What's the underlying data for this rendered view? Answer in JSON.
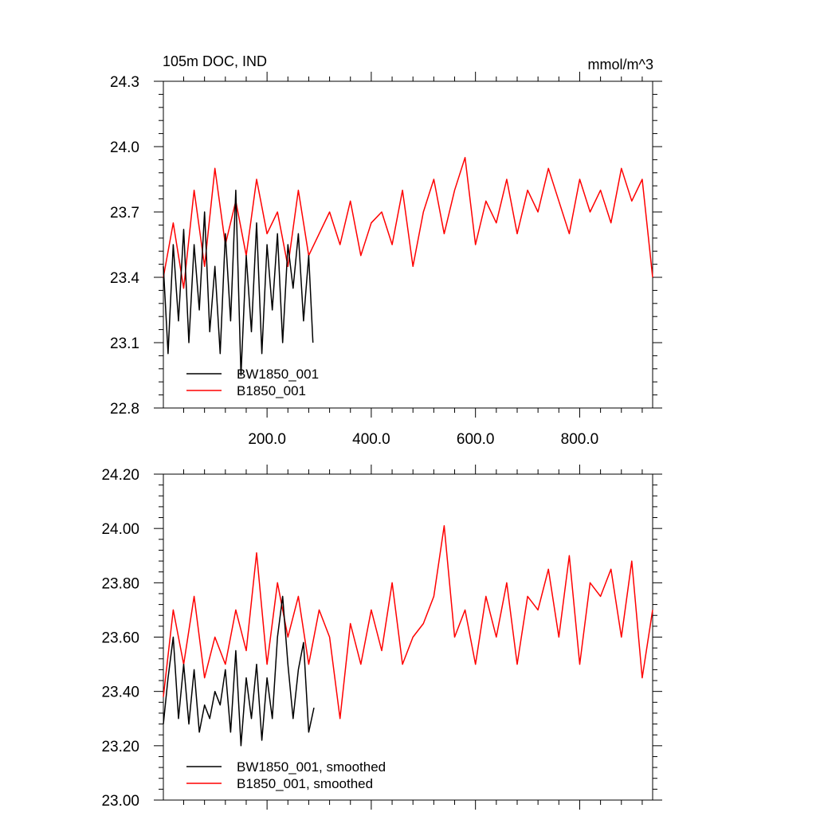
{
  "chart_data": [
    {
      "type": "line",
      "title": "105m DOC, IND",
      "units": "mmol/m^3",
      "xlabel": "",
      "ylabel": "",
      "xlim": [
        1,
        940
      ],
      "ylim": [
        22.8,
        24.3
      ],
      "xticks": [
        200,
        400,
        600,
        800
      ],
      "xtick_labels": [
        "200.0",
        "400.0",
        "600.0",
        "800.0"
      ],
      "yticks": [
        22.8,
        23.1,
        23.4,
        23.7,
        24.0,
        24.3
      ],
      "ytick_labels": [
        "22.8",
        "23.1",
        "23.4",
        "23.7",
        "24.0",
        "24.3"
      ],
      "legend": "bottom-left",
      "series": [
        {
          "name": "BW1850_001",
          "color": "#000000",
          "x": [
            1,
            10,
            20,
            30,
            40,
            50,
            60,
            70,
            80,
            90,
            100,
            110,
            120,
            130,
            140,
            150,
            160,
            170,
            180,
            190,
            200,
            210,
            220,
            230,
            240,
            250,
            260,
            270,
            280,
            288
          ],
          "values": [
            23.45,
            23.05,
            23.55,
            23.2,
            23.62,
            23.1,
            23.55,
            23.25,
            23.7,
            23.15,
            23.45,
            23.05,
            23.6,
            23.2,
            23.8,
            22.95,
            23.5,
            23.15,
            23.65,
            23.05,
            23.55,
            23.25,
            23.6,
            23.1,
            23.55,
            23.35,
            23.6,
            23.2,
            23.5,
            23.1
          ]
        },
        {
          "name": "B1850_001",
          "color": "#ff0000",
          "x": [
            1,
            20,
            40,
            60,
            80,
            100,
            120,
            140,
            160,
            180,
            200,
            220,
            240,
            260,
            280,
            300,
            320,
            340,
            360,
            380,
            400,
            420,
            440,
            460,
            480,
            500,
            520,
            540,
            560,
            580,
            600,
            620,
            640,
            660,
            680,
            700,
            720,
            740,
            760,
            780,
            800,
            820,
            840,
            860,
            880,
            900,
            920,
            940
          ],
          "values": [
            23.4,
            23.65,
            23.35,
            23.8,
            23.45,
            23.9,
            23.55,
            23.75,
            23.5,
            23.85,
            23.6,
            23.7,
            23.45,
            23.8,
            23.5,
            23.6,
            23.7,
            23.55,
            23.75,
            23.5,
            23.65,
            23.7,
            23.55,
            23.8,
            23.45,
            23.7,
            23.85,
            23.6,
            23.8,
            23.95,
            23.55,
            23.75,
            23.65,
            23.85,
            23.6,
            23.8,
            23.7,
            23.9,
            23.75,
            23.6,
            23.85,
            23.7,
            23.8,
            23.65,
            23.9,
            23.75,
            23.85,
            23.4
          ]
        }
      ]
    },
    {
      "type": "line",
      "title": "",
      "xlabel": "",
      "ylabel": "",
      "xlim": [
        1,
        940
      ],
      "ylim": [
        23.0,
        24.2
      ],
      "xticks": [
        200,
        400,
        600,
        800
      ],
      "yticks": [
        23.0,
        23.2,
        23.4,
        23.6,
        23.8,
        24.0,
        24.2
      ],
      "ytick_labels": [
        "23.00",
        "23.20",
        "23.40",
        "23.60",
        "23.80",
        "24.00",
        "24.20"
      ],
      "legend": "bottom-left",
      "series": [
        {
          "name": "BW1850_001, smoothed",
          "color": "#000000",
          "x": [
            1,
            10,
            20,
            30,
            40,
            50,
            60,
            70,
            80,
            90,
            100,
            110,
            120,
            130,
            140,
            150,
            160,
            170,
            180,
            190,
            200,
            210,
            220,
            230,
            240,
            250,
            260,
            270,
            280,
            290
          ],
          "values": [
            23.28,
            23.45,
            23.6,
            23.3,
            23.5,
            23.28,
            23.48,
            23.25,
            23.35,
            23.3,
            23.4,
            23.35,
            23.48,
            23.25,
            23.55,
            23.2,
            23.45,
            23.3,
            23.5,
            23.22,
            23.45,
            23.3,
            23.6,
            23.75,
            23.5,
            23.3,
            23.48,
            23.58,
            23.25,
            23.34
          ]
        },
        {
          "name": "B1850_001, smoothed",
          "color": "#ff0000",
          "x": [
            1,
            20,
            40,
            60,
            80,
            100,
            120,
            140,
            160,
            180,
            200,
            220,
            240,
            260,
            280,
            300,
            320,
            340,
            360,
            380,
            400,
            420,
            440,
            460,
            480,
            500,
            520,
            540,
            560,
            580,
            600,
            620,
            640,
            660,
            680,
            700,
            720,
            740,
            760,
            780,
            800,
            820,
            840,
            860,
            880,
            900,
            920,
            940
          ],
          "values": [
            23.38,
            23.7,
            23.5,
            23.75,
            23.45,
            23.6,
            23.5,
            23.7,
            23.55,
            23.91,
            23.5,
            23.8,
            23.6,
            23.75,
            23.5,
            23.7,
            23.6,
            23.3,
            23.65,
            23.5,
            23.7,
            23.55,
            23.8,
            23.5,
            23.6,
            23.65,
            23.75,
            24.01,
            23.6,
            23.7,
            23.5,
            23.75,
            23.6,
            23.8,
            23.5,
            23.75,
            23.7,
            23.85,
            23.6,
            23.9,
            23.5,
            23.8,
            23.75,
            23.85,
            23.6,
            23.88,
            23.45,
            23.7
          ]
        }
      ]
    }
  ]
}
